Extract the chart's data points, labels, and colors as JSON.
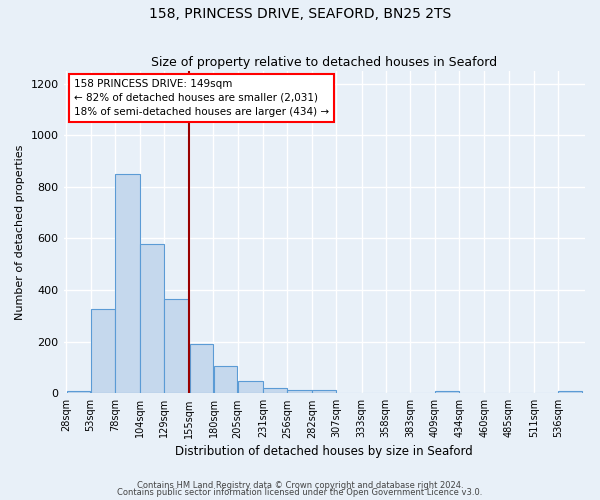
{
  "title": "158, PRINCESS DRIVE, SEAFORD, BN25 2TS",
  "subtitle": "Size of property relative to detached houses in Seaford",
  "xlabel": "Distribution of detached houses by size in Seaford",
  "ylabel": "Number of detached properties",
  "bar_color": "#c5d8ed",
  "bar_edge_color": "#5b9bd5",
  "background_color": "#e8f0f8",
  "grid_color": "#d0d8e8",
  "bin_labels": [
    "28sqm",
    "53sqm",
    "78sqm",
    "104sqm",
    "129sqm",
    "155sqm",
    "180sqm",
    "205sqm",
    "231sqm",
    "256sqm",
    "282sqm",
    "307sqm",
    "333sqm",
    "358sqm",
    "383sqm",
    "409sqm",
    "434sqm",
    "460sqm",
    "485sqm",
    "511sqm",
    "536sqm"
  ],
  "bar_values": [
    10,
    325,
    848,
    580,
    365,
    190,
    105,
    47,
    20,
    14,
    14,
    0,
    0,
    0,
    0,
    8,
    0,
    0,
    0,
    0,
    8
  ],
  "ylim": [
    0,
    1250
  ],
  "yticks": [
    0,
    200,
    400,
    600,
    800,
    1000,
    1200
  ],
  "vline_label": "158 PRINCESS DRIVE: 149sqm",
  "annotation_line1": "← 82% of detached houses are smaller (2,031)",
  "annotation_line2": "18% of semi-detached houses are larger (434) →",
  "footer_line1": "Contains HM Land Registry data © Crown copyright and database right 2024.",
  "footer_line2": "Contains public sector information licensed under the Open Government Licence v3.0.",
  "bin_edges": [
    28,
    53,
    78,
    104,
    129,
    155,
    180,
    205,
    231,
    256,
    282,
    307,
    333,
    358,
    383,
    409,
    434,
    460,
    485,
    511,
    536,
    561
  ]
}
